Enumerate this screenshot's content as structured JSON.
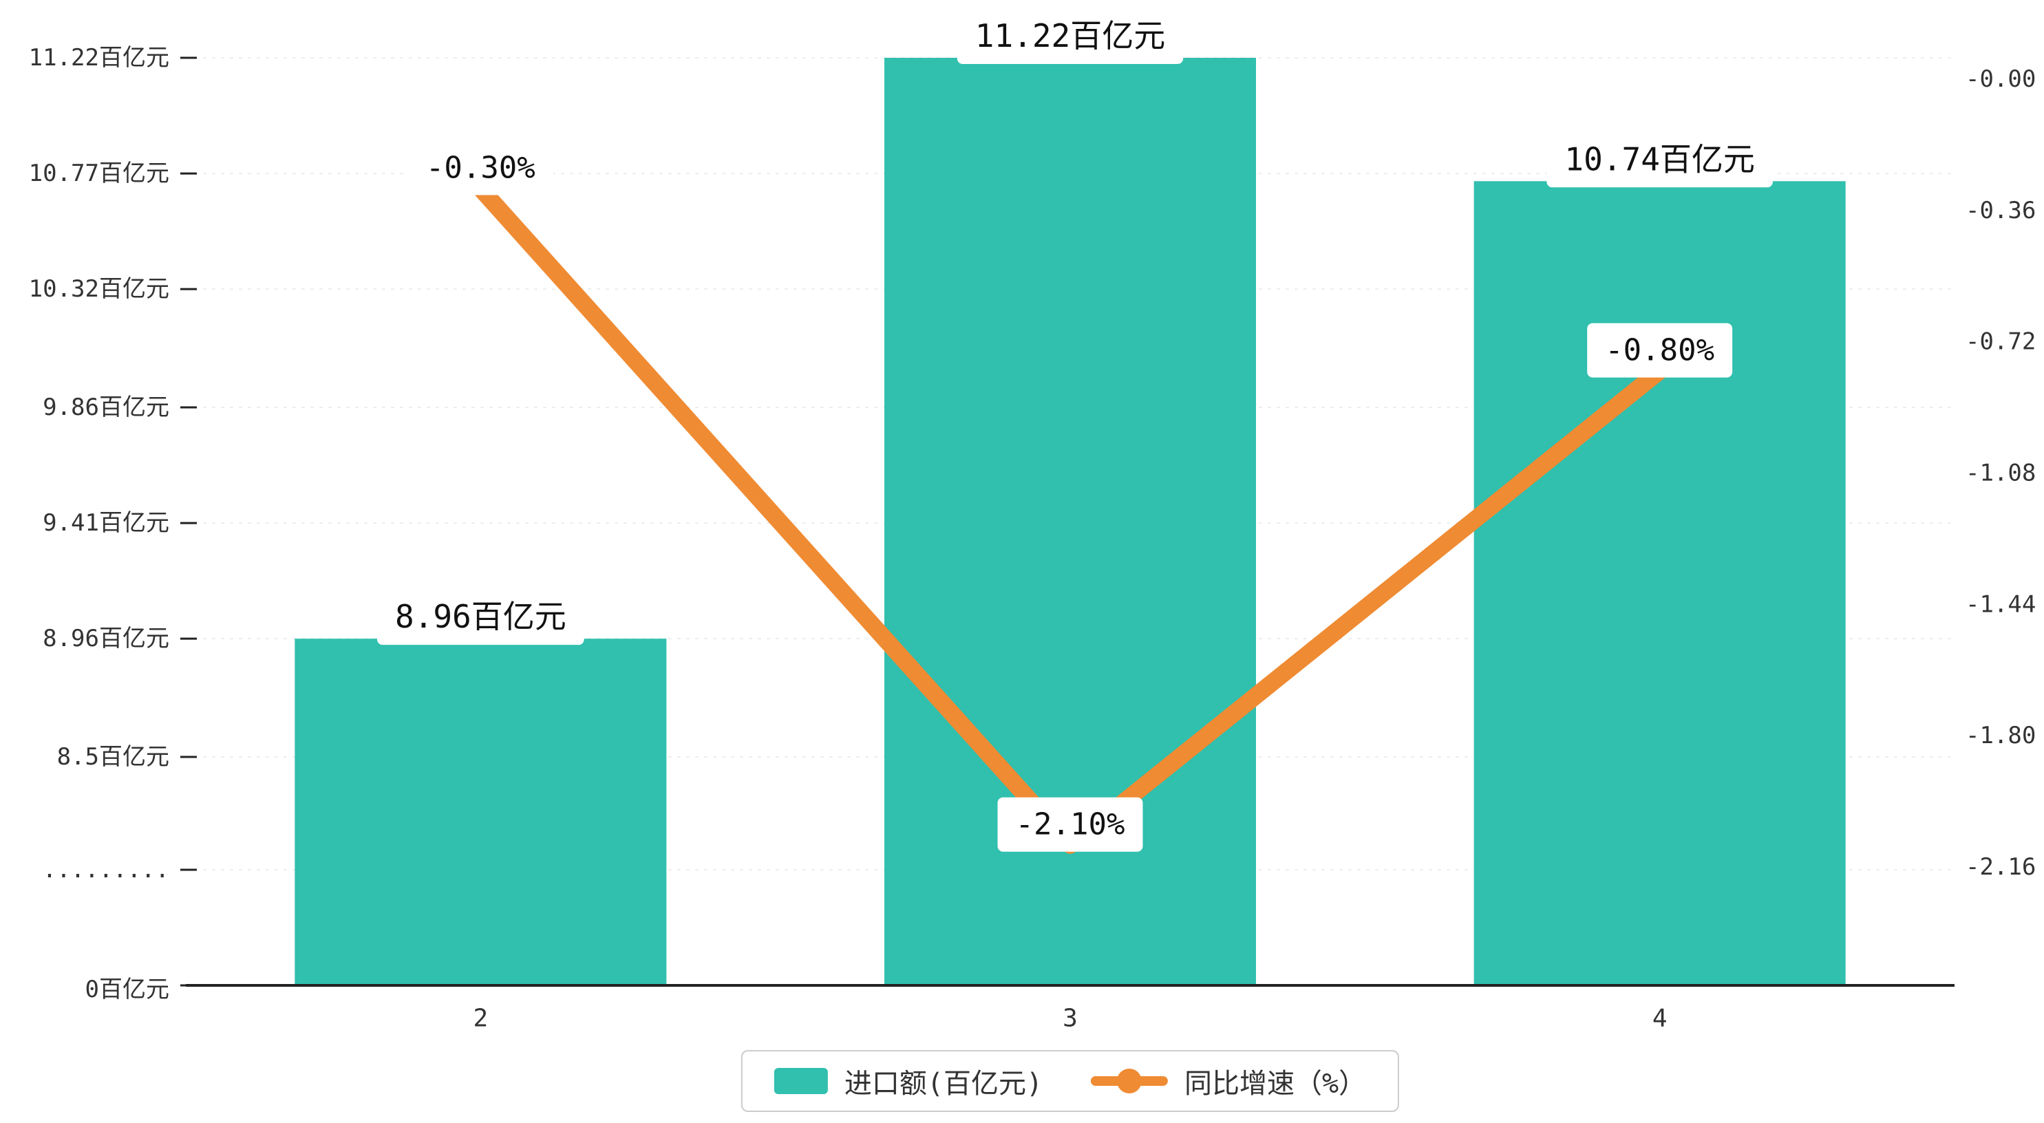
{
  "chart_data": {
    "type": "bar+line",
    "categories": [
      "2",
      "3",
      "4"
    ],
    "series": [
      {
        "name": "进口额(百亿元)",
        "type": "bar",
        "axis": "left",
        "values": [
          8.96,
          11.22,
          10.74
        ],
        "labels": [
          "8.96百亿元",
          "11.22百亿元",
          "10.74百亿元"
        ]
      },
      {
        "name": "同比增速（%）",
        "type": "line",
        "axis": "right",
        "values": [
          -0.3,
          -2.1,
          -0.8
        ],
        "labels": [
          "-0.30%",
          "-2.10%",
          "-0.80%"
        ]
      }
    ],
    "left_axis": {
      "title": "",
      "broken": true,
      "linear_range": [
        8.5,
        11.22
      ],
      "ticks": [
        {
          "label": "11.22百亿元",
          "value": 11.22
        },
        {
          "label": "10.77百亿元",
          "value": 10.77
        },
        {
          "label": "10.32百亿元",
          "value": 10.32
        },
        {
          "label": "9.86百亿元",
          "value": 9.86
        },
        {
          "label": "9.41百亿元",
          "value": 9.41
        },
        {
          "label": "8.96百亿元",
          "value": 8.96
        },
        {
          "label": "8.5百亿元",
          "value": 8.5
        },
        {
          "label": ".........",
          "value": null
        },
        {
          "label": "0百亿元",
          "value": 0
        }
      ]
    },
    "right_axis": {
      "range": [
        0,
        -2.16
      ],
      "ticks": [
        "-0.00",
        "-0.36",
        "-0.72",
        "-1.08",
        "-1.44",
        "-1.80",
        "-2.16"
      ]
    },
    "legend": [
      {
        "label": "进口额(百亿元)",
        "marker": "bar"
      },
      {
        "label": "同比增速（%）",
        "marker": "line"
      }
    ],
    "grid": true,
    "legend_position": "bottom-center"
  },
  "colors": {
    "bar": "#31BFAE",
    "line": "#EF8B33",
    "axis": "#222222",
    "tick_text": "#333333",
    "grid": "#ECECEC",
    "label_text": "#111111",
    "label_box": "#FFFFFF",
    "legend_border": "#CCCCCC",
    "background": "#FFFFFF"
  }
}
